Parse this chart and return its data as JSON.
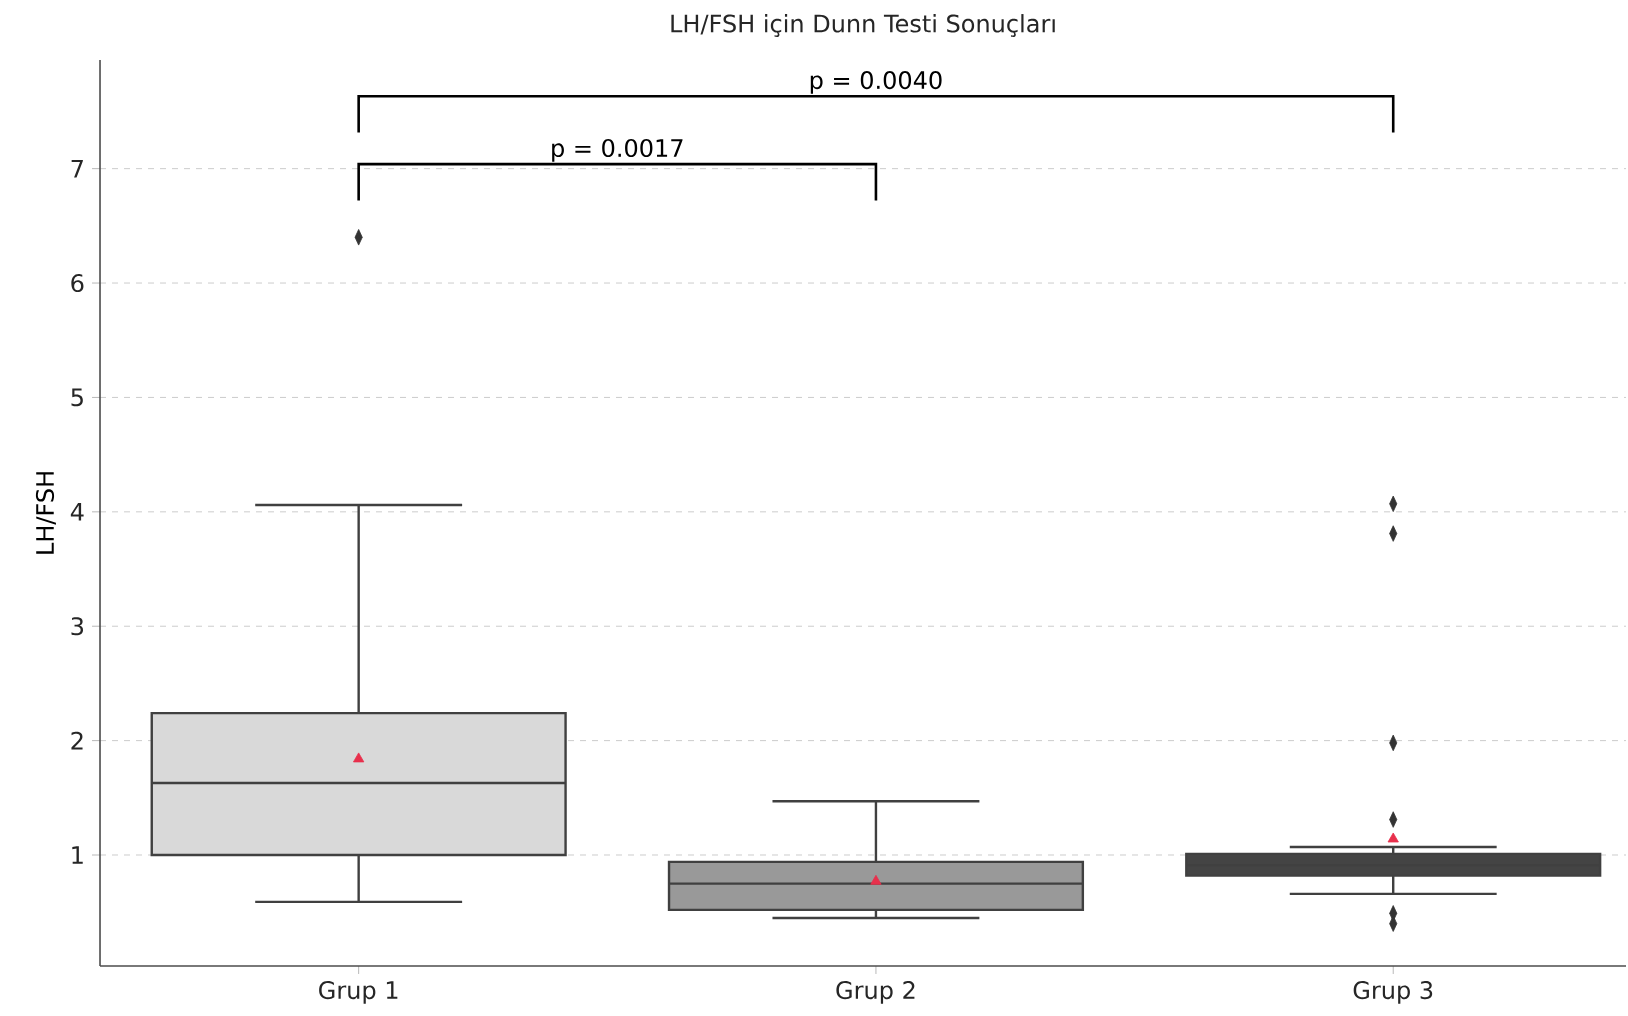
{
  "chart_data": {
    "type": "box",
    "title": "LH/FSH için Dunn Testi Sonuçları",
    "ylabel": "LH/FSH",
    "categories": [
      "Grup 1",
      "Grup 2",
      "Grup 3"
    ],
    "colors": [
      "#d9d9d9",
      "#999999",
      "#444444"
    ],
    "boxes": [
      {
        "low": 0.59,
        "q1": 1.0,
        "median": 1.63,
        "q3": 2.24,
        "high": 4.06,
        "mean": 1.84,
        "outliers": [
          6.4
        ]
      },
      {
        "low": 0.45,
        "q1": 0.52,
        "median": 0.75,
        "q3": 0.94,
        "high": 1.47,
        "mean": 0.77
      },
      {
        "low": 0.66,
        "q1": 0.82,
        "median": 0.91,
        "q3": 1.01,
        "high": 1.07,
        "mean": 1.14,
        "outliers": [
          4.07,
          3.81,
          1.98,
          1.31,
          0.49,
          0.4
        ]
      }
    ],
    "ylim": [
      0.03,
      7.95
    ],
    "yticks": [
      1,
      2,
      3,
      4,
      5,
      6,
      7
    ],
    "grid": "y",
    "marker": "diamond",
    "annotations": [
      "p = 0.0017",
      "p = 0.0040"
    ]
  }
}
